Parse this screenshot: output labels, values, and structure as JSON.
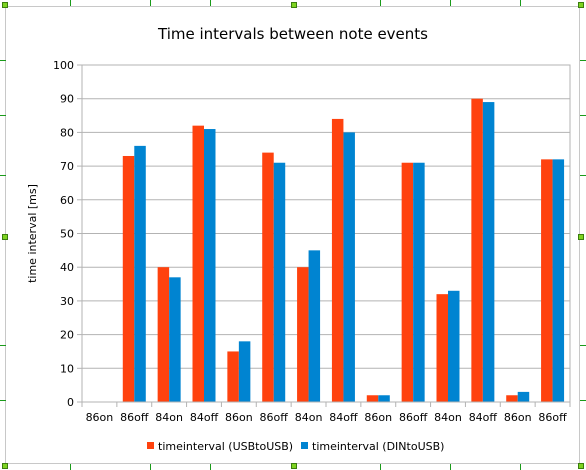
{
  "chart_data": {
    "type": "bar",
    "title": "Time intervals between note events",
    "xlabel": "",
    "ylabel": "time interval [ms]",
    "ylim": [
      0,
      100
    ],
    "yticks": [
      0,
      10,
      20,
      30,
      40,
      50,
      60,
      70,
      80,
      90,
      100
    ],
    "grid": true,
    "legend_position": "bottom",
    "categories": [
      "86on",
      "86off",
      "84on",
      "84off",
      "86on",
      "86off",
      "84on",
      "84off",
      "86on",
      "86off",
      "84on",
      "84off",
      "86on",
      "86off"
    ],
    "series": [
      {
        "name": "timeinterval (USBtoUSB)",
        "color": "#ff420e",
        "values": [
          0,
          73,
          40,
          82,
          15,
          74,
          40,
          84,
          2,
          71,
          32,
          90,
          2,
          72
        ]
      },
      {
        "name": "timeinterval (DINtoUSB)",
        "color": "#0084d1",
        "values": [
          0,
          76,
          37,
          81,
          18,
          71,
          45,
          80,
          2,
          71,
          33,
          89,
          3,
          72
        ]
      }
    ]
  }
}
